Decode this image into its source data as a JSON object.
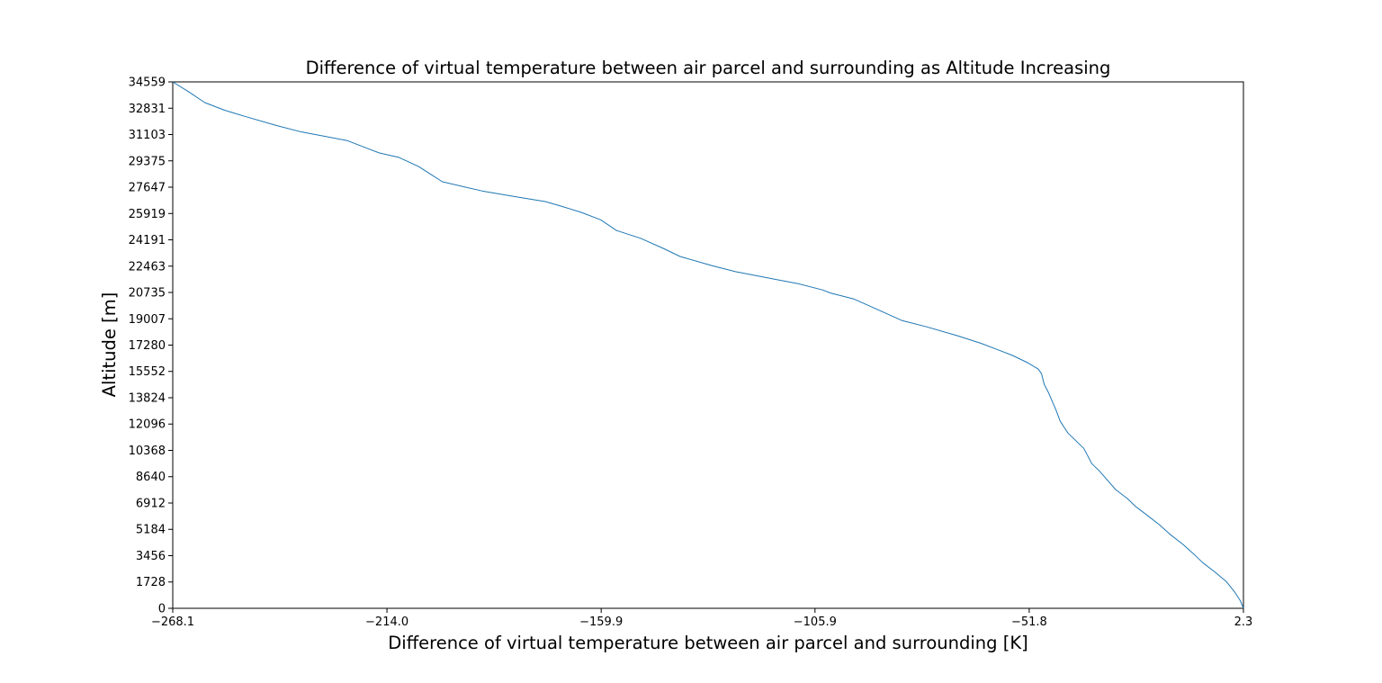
{
  "chart_data": {
    "type": "line",
    "title": "Difference of virtual temperature between air parcel and surrounding as Altitude Increasing",
    "xlabel": "Difference of virtual temperature between air parcel and surrounding [K]",
    "ylabel": "Altitude [m]",
    "xlim": [
      -268.1,
      2.3
    ],
    "ylim": [
      0,
      34559
    ],
    "xticks": [
      -268.1,
      -214.0,
      -159.9,
      -105.9,
      -51.8,
      2.3
    ],
    "xtick_labels": [
      "−268.1",
      "−214.0",
      "−159.9",
      "−105.9",
      "−51.8",
      "2.3"
    ],
    "yticks": [
      0,
      1728,
      3456,
      5184,
      6912,
      8640,
      10368,
      12096,
      13824,
      15552,
      17280,
      19007,
      20735,
      22463,
      24191,
      25919,
      27647,
      29375,
      31103,
      32831,
      34559
    ],
    "ytick_labels": [
      "0",
      "1728",
      "3456",
      "5184",
      "6912",
      "8640",
      "10368",
      "12096",
      "13824",
      "15552",
      "17280",
      "19007",
      "20735",
      "22463",
      "24191",
      "25919",
      "27647",
      "29375",
      "31103",
      "32831",
      "34559"
    ],
    "grid": false,
    "legend": "none",
    "series": [
      {
        "color": "#1f77b4",
        "x": [
          2.3,
          1.5,
          0.0,
          -2.0,
          -5.0,
          -8.0,
          -10.0,
          -13.0,
          -16.0,
          -19.0,
          -22.0,
          -25.0,
          -27.0,
          -30.0,
          -32.0,
          -34.0,
          -36.0,
          -37.0,
          -38.0,
          -40.0,
          -42.0,
          -43.0,
          -44.0,
          -45.0,
          -46.0,
          -47.0,
          -48.0,
          -48.5,
          -48.7,
          -49.5,
          -52.0,
          -56.0,
          -60.0,
          -64.0,
          -70.0,
          -78.0,
          -84.0,
          -90.0,
          -96.0,
          -102.0,
          -104.0,
          -110.0,
          -116.0,
          -122.0,
          -126.0,
          -132.0,
          -140.0,
          -144.0,
          -150.0,
          -156.0,
          -160.0,
          -165.0,
          -170.0,
          -174.0,
          -181.0,
          -190.0,
          -195.0,
          -200.0,
          -203.0,
          -206.0,
          -211.0,
          -216.0,
          -219.0,
          -224.0,
          -230.0,
          -236.0,
          -242.0,
          -250.0,
          -255.0,
          -260.0,
          -264.0,
          -268.1
        ],
        "y": [
          0,
          500,
          1100,
          1750,
          2400,
          3000,
          3500,
          4200,
          4800,
          5500,
          6100,
          6700,
          7200,
          7800,
          8400,
          9000,
          9500,
          10000,
          10500,
          11000,
          11500,
          11900,
          12300,
          13000,
          13600,
          14200,
          14700,
          15200,
          15400,
          15700,
          16100,
          16600,
          17000,
          17400,
          17900,
          18500,
          18900,
          19600,
          20300,
          20700,
          20900,
          21300,
          21600,
          21900,
          22100,
          22500,
          23100,
          23600,
          24300,
          24800,
          25500,
          26000,
          26400,
          26700,
          27000,
          27400,
          27700,
          28000,
          28500,
          29000,
          29600,
          29900,
          30200,
          30700,
          31000,
          31300,
          31700,
          32300,
          32700,
          33200,
          33900,
          34559
        ]
      }
    ]
  }
}
